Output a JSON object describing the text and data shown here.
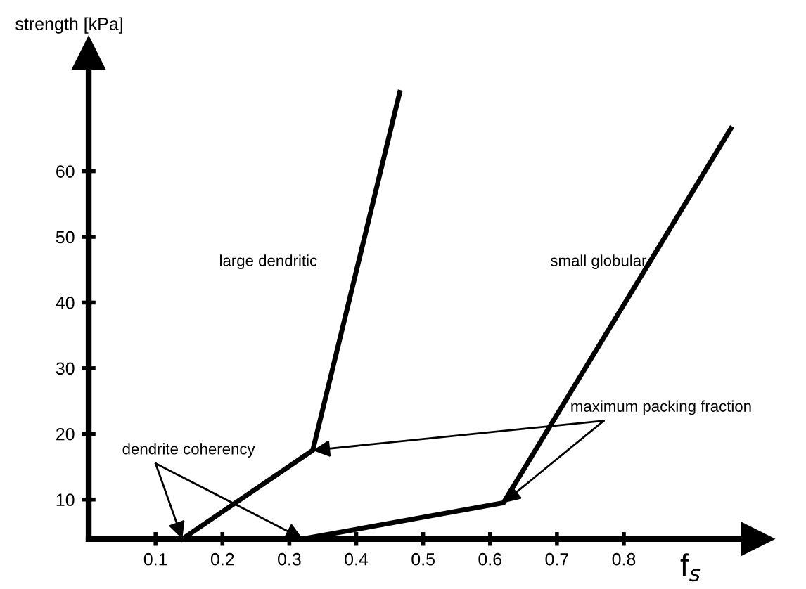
{
  "chart_data": {
    "type": "line",
    "xlabel": "f$_{s}$",
    "ylabel": "strength [kPa]",
    "xlim": [
      0,
      1.0
    ],
    "ylim": [
      4,
      78
    ],
    "xticks": [
      0.1,
      0.2,
      0.3,
      0.4,
      0.5,
      0.6,
      0.7,
      0.8
    ],
    "yticks": [
      10,
      20,
      30,
      40,
      50,
      60
    ],
    "series": [
      {
        "name": "large dendritic",
        "color": "#000000",
        "x": [
          0.14,
          0.335,
          0.465
        ],
        "values": [
          4,
          17.5,
          72
        ]
      },
      {
        "name": "small globular",
        "color": "#000000",
        "x": [
          0.32,
          0.62,
          0.96
        ],
        "values": [
          4,
          9.5,
          66.5
        ]
      }
    ],
    "annotations": [
      {
        "text": "dendrite coherency",
        "x": 0.14,
        "y": 4
      },
      {
        "text": "maximum packing fraction",
        "x": 0.62,
        "y": 9.5
      }
    ],
    "grid": false,
    "legend": false,
    "marker": "none",
    "line_style": "solid"
  }
}
